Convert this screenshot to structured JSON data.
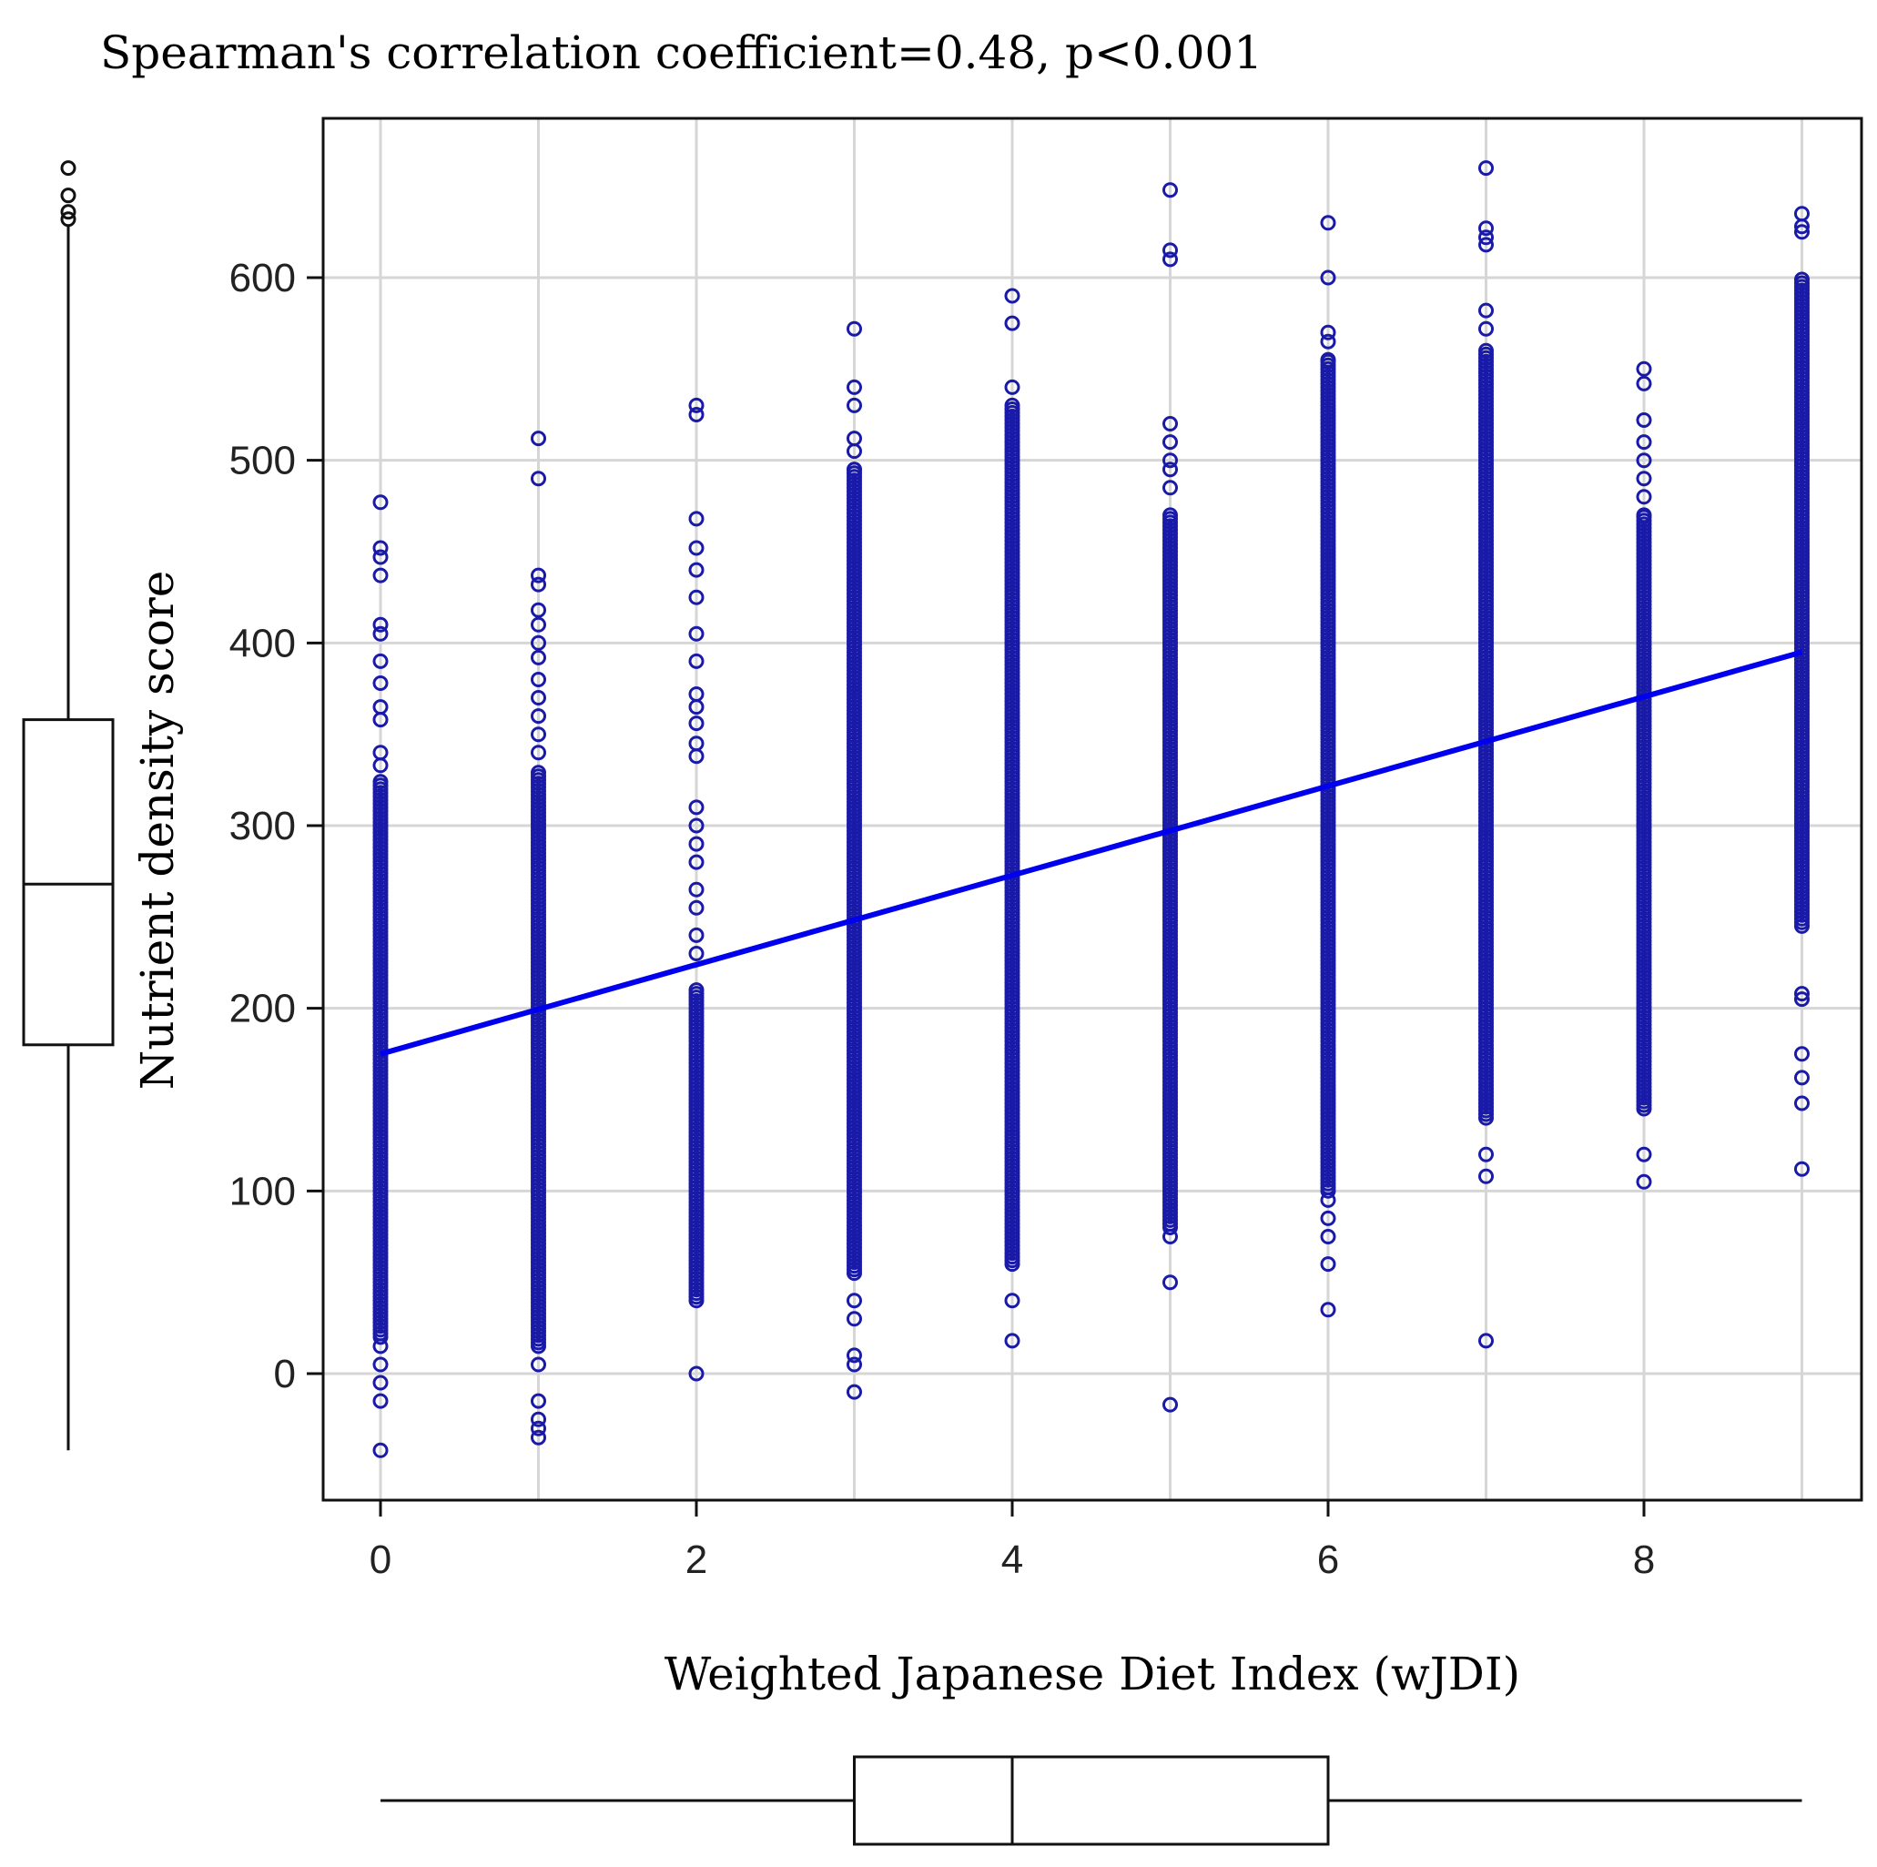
{
  "chart_data": {
    "type": "scatter",
    "annotation": "Spearman's correlation coefficient=0.48, p<0.001",
    "xlabel": "Weighted Japanese Diet Index (wJDI)",
    "ylabel": "Nutrient density score",
    "xlim": [
      0,
      9
    ],
    "ylim": [
      -70,
      690
    ],
    "x_ticks": [
      0,
      2,
      4,
      6,
      8
    ],
    "y_ticks": [
      0,
      100,
      200,
      300,
      400,
      500,
      600
    ],
    "grid": true,
    "point_color": "#1a1aa8",
    "line_color": "#0000ee",
    "regression_line": {
      "x": [
        0,
        9
      ],
      "y": [
        175,
        395
      ]
    },
    "columns": [
      {
        "x": 0,
        "dense_range": [
          20,
          325
        ],
        "scattered": [
          477,
          452,
          447,
          437,
          410,
          405,
          390,
          378,
          365,
          358,
          340,
          333,
          15,
          5,
          -5,
          -15,
          -42
        ]
      },
      {
        "x": 1,
        "dense_range": [
          15,
          330
        ],
        "scattered": [
          512,
          490,
          437,
          432,
          418,
          410,
          400,
          392,
          380,
          370,
          360,
          350,
          340,
          5,
          -15,
          -25,
          -30,
          -35
        ]
      },
      {
        "x": 2,
        "dense_range": [
          40,
          210
        ],
        "scattered": [
          530,
          525,
          468,
          452,
          440,
          425,
          405,
          390,
          372,
          365,
          356,
          345,
          338,
          310,
          300,
          290,
          280,
          265,
          255,
          240,
          230,
          0
        ]
      },
      {
        "x": 3,
        "dense_range": [
          55,
          495
        ],
        "scattered": [
          572,
          540,
          530,
          512,
          505,
          495,
          40,
          30,
          10,
          5,
          -10
        ]
      },
      {
        "x": 4,
        "dense_range": [
          60,
          530
        ],
        "scattered": [
          590,
          575,
          540,
          40,
          18
        ]
      },
      {
        "x": 5,
        "dense_range": [
          80,
          470
        ],
        "scattered": [
          648,
          615,
          610,
          520,
          510,
          500,
          495,
          485,
          75,
          50,
          -17
        ]
      },
      {
        "x": 6,
        "dense_range": [
          100,
          555
        ],
        "scattered": [
          630,
          600,
          570,
          565,
          555,
          95,
          85,
          75,
          60,
          35
        ]
      },
      {
        "x": 7,
        "dense_range": [
          140,
          560
        ],
        "scattered": [
          660,
          627,
          622,
          618,
          582,
          572,
          120,
          108,
          18
        ]
      },
      {
        "x": 8,
        "dense_range": [
          145,
          470
        ],
        "scattered": [
          550,
          542,
          522,
          510,
          500,
          490,
          480,
          470,
          120,
          105
        ]
      },
      {
        "x": 9,
        "dense_range": [
          245,
          600
        ],
        "scattered": [
          635,
          628,
          625,
          208,
          205,
          175,
          162,
          148,
          112
        ]
      }
    ],
    "y_boxplot": {
      "min": -42,
      "q1": 180,
      "median": 268,
      "q3": 358,
      "whisker_high": 628,
      "outliers": [
        632,
        636,
        645,
        660
      ]
    },
    "x_boxplot": {
      "min": 0,
      "q1": 3,
      "median": 4,
      "q3": 6,
      "max": 9
    }
  }
}
